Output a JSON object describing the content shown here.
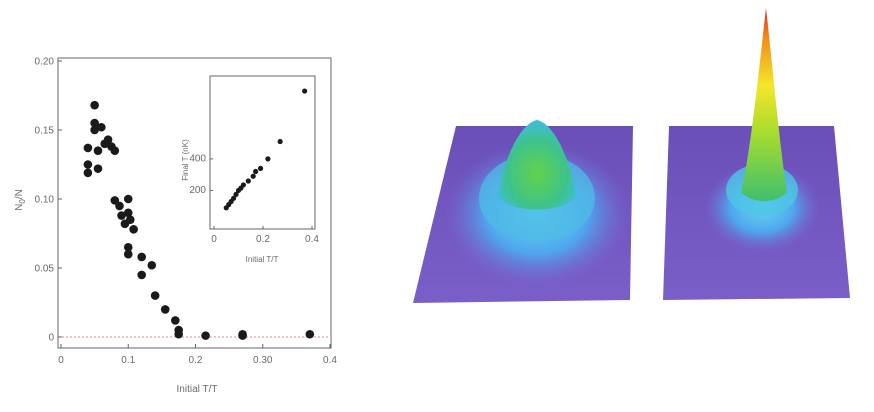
{
  "chart_data": [
    {
      "type": "scatter",
      "title": "",
      "xlabel": "Initial T/T",
      "ylabel": "N",
      "ylabel_sub": "0",
      "ylabel_tail": "/N",
      "xlim": [
        0,
        0.4
      ],
      "ylim": [
        0,
        0.2
      ],
      "x_ticks": [
        0,
        0.1,
        0.2,
        0.3,
        0.4
      ],
      "x_tick_labels": [
        "0",
        "0.1",
        "0.2",
        "0.30",
        "0.4"
      ],
      "y_ticks": [
        0,
        0.05,
        0.1,
        0.15,
        0.2
      ],
      "y_tick_labels": [
        "0",
        "0.05",
        "0.10",
        "0.15",
        "0.20"
      ],
      "reference_line_y": 0,
      "points": [
        {
          "x": 0.04,
          "y": 0.137
        },
        {
          "x": 0.04,
          "y": 0.125
        },
        {
          "x": 0.04,
          "y": 0.119
        },
        {
          "x": 0.05,
          "y": 0.168
        },
        {
          "x": 0.05,
          "y": 0.155
        },
        {
          "x": 0.05,
          "y": 0.15
        },
        {
          "x": 0.055,
          "y": 0.135
        },
        {
          "x": 0.055,
          "y": 0.122
        },
        {
          "x": 0.06,
          "y": 0.152
        },
        {
          "x": 0.065,
          "y": 0.14
        },
        {
          "x": 0.07,
          "y": 0.143
        },
        {
          "x": 0.075,
          "y": 0.138
        },
        {
          "x": 0.08,
          "y": 0.135
        },
        {
          "x": 0.08,
          "y": 0.099
        },
        {
          "x": 0.087,
          "y": 0.095
        },
        {
          "x": 0.09,
          "y": 0.088
        },
        {
          "x": 0.095,
          "y": 0.082
        },
        {
          "x": 0.1,
          "y": 0.1
        },
        {
          "x": 0.1,
          "y": 0.09
        },
        {
          "x": 0.103,
          "y": 0.085
        },
        {
          "x": 0.108,
          "y": 0.078
        },
        {
          "x": 0.1,
          "y": 0.065
        },
        {
          "x": 0.1,
          "y": 0.06
        },
        {
          "x": 0.12,
          "y": 0.058
        },
        {
          "x": 0.12,
          "y": 0.045
        },
        {
          "x": 0.135,
          "y": 0.052
        },
        {
          "x": 0.14,
          "y": 0.03
        },
        {
          "x": 0.155,
          "y": 0.02
        },
        {
          "x": 0.17,
          "y": 0.012
        },
        {
          "x": 0.175,
          "y": 0.005
        },
        {
          "x": 0.175,
          "y": 0.002
        },
        {
          "x": 0.215,
          "y": 0.001
        },
        {
          "x": 0.27,
          "y": 0.002
        },
        {
          "x": 0.27,
          "y": 0.001
        },
        {
          "x": 0.37,
          "y": 0.002
        }
      ]
    },
    {
      "type": "scatter",
      "inset": true,
      "xlabel": "Initial T/T",
      "ylabel": "Final T (nK)",
      "xlim": [
        0,
        0.4
      ],
      "ylim": [
        0,
        900
      ],
      "x_ticks": [
        0,
        0.2,
        0.4
      ],
      "x_tick_labels": [
        "0",
        "0.2",
        "0.4"
      ],
      "y_ticks": [
        200,
        400
      ],
      "y_tick_labels": [
        "200",
        "400"
      ],
      "points": [
        {
          "x": 0.05,
          "y": 90
        },
        {
          "x": 0.06,
          "y": 110
        },
        {
          "x": 0.07,
          "y": 130
        },
        {
          "x": 0.08,
          "y": 150
        },
        {
          "x": 0.09,
          "y": 175
        },
        {
          "x": 0.1,
          "y": 200
        },
        {
          "x": 0.11,
          "y": 215
        },
        {
          "x": 0.12,
          "y": 235
        },
        {
          "x": 0.14,
          "y": 260
        },
        {
          "x": 0.16,
          "y": 290
        },
        {
          "x": 0.17,
          "y": 320
        },
        {
          "x": 0.19,
          "y": 340
        },
        {
          "x": 0.22,
          "y": 400
        },
        {
          "x": 0.27,
          "y": 510
        },
        {
          "x": 0.37,
          "y": 830
        }
      ]
    }
  ]
}
